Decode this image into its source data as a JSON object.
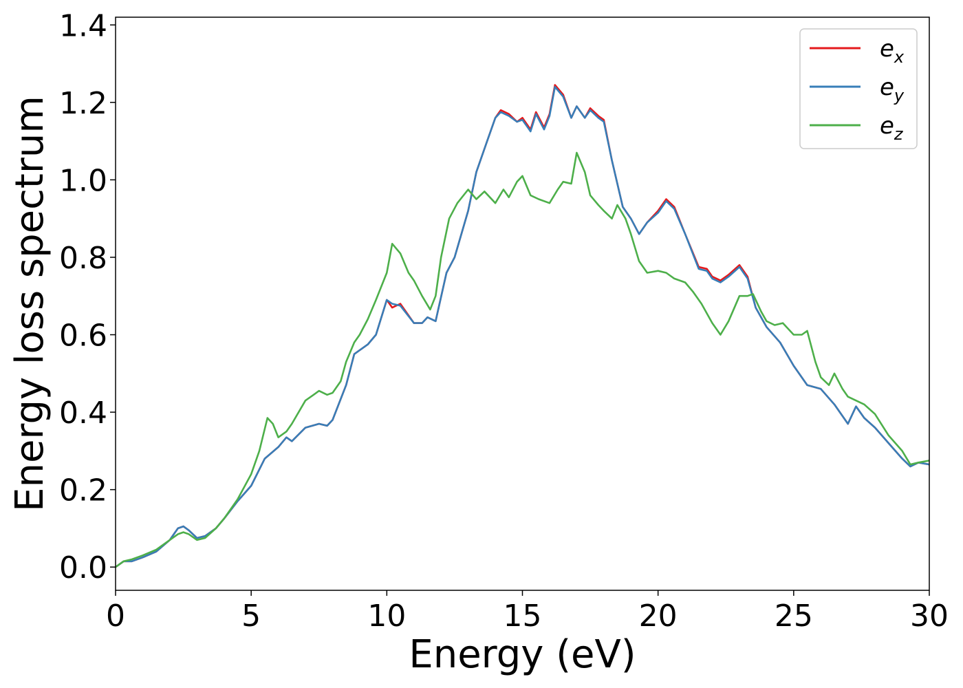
{
  "chart_data": {
    "type": "line",
    "title": "",
    "xlabel": "Energy (eV)",
    "ylabel": "Energy loss spectrum",
    "xlim": [
      0,
      30
    ],
    "ylim": [
      -0.06,
      1.42
    ],
    "x_ticks": [
      0,
      5,
      10,
      15,
      20,
      25,
      30
    ],
    "y_ticks": [
      0.0,
      0.2,
      0.4,
      0.6,
      0.8,
      1.0,
      1.2,
      1.4
    ],
    "x_tick_labels": [
      "0",
      "5",
      "10",
      "15",
      "20",
      "25",
      "30"
    ],
    "y_tick_labels": [
      "0.0",
      "0.2",
      "0.4",
      "0.6",
      "0.8",
      "1.0",
      "1.2",
      "1.4"
    ],
    "grid": false,
    "legend_position": "top-right",
    "series": [
      {
        "name": "e_x",
        "label_base": "e",
        "label_sub": "x",
        "color": "#e41a1c",
        "points": [
          [
            0,
            0.0
          ],
          [
            0.3,
            0.015
          ],
          [
            0.6,
            0.015
          ],
          [
            1.0,
            0.025
          ],
          [
            1.5,
            0.04
          ],
          [
            2.0,
            0.07
          ],
          [
            2.3,
            0.1
          ],
          [
            2.5,
            0.105
          ],
          [
            2.7,
            0.095
          ],
          [
            3.0,
            0.075
          ],
          [
            3.3,
            0.08
          ],
          [
            3.7,
            0.1
          ],
          [
            4.0,
            0.125
          ],
          [
            4.5,
            0.17
          ],
          [
            5.0,
            0.21
          ],
          [
            5.5,
            0.28
          ],
          [
            6.0,
            0.31
          ],
          [
            6.3,
            0.335
          ],
          [
            6.5,
            0.325
          ],
          [
            7.0,
            0.36
          ],
          [
            7.5,
            0.37
          ],
          [
            7.8,
            0.365
          ],
          [
            8.0,
            0.38
          ],
          [
            8.5,
            0.47
          ],
          [
            8.8,
            0.55
          ],
          [
            9.0,
            0.56
          ],
          [
            9.3,
            0.575
          ],
          [
            9.6,
            0.6
          ],
          [
            10.0,
            0.69
          ],
          [
            10.2,
            0.67
          ],
          [
            10.5,
            0.68
          ],
          [
            11.0,
            0.63
          ],
          [
            11.3,
            0.63
          ],
          [
            11.5,
            0.645
          ],
          [
            11.8,
            0.635
          ],
          [
            12.2,
            0.76
          ],
          [
            12.5,
            0.8
          ],
          [
            13.0,
            0.92
          ],
          [
            13.3,
            1.02
          ],
          [
            13.7,
            1.1
          ],
          [
            14.0,
            1.16
          ],
          [
            14.2,
            1.18
          ],
          [
            14.5,
            1.17
          ],
          [
            14.8,
            1.15
          ],
          [
            15.0,
            1.16
          ],
          [
            15.3,
            1.13
          ],
          [
            15.5,
            1.175
          ],
          [
            15.8,
            1.135
          ],
          [
            16.0,
            1.17
          ],
          [
            16.2,
            1.245
          ],
          [
            16.5,
            1.22
          ],
          [
            16.8,
            1.16
          ],
          [
            17.0,
            1.19
          ],
          [
            17.3,
            1.16
          ],
          [
            17.5,
            1.185
          ],
          [
            17.8,
            1.165
          ],
          [
            18.0,
            1.155
          ],
          [
            18.3,
            1.05
          ],
          [
            18.7,
            0.93
          ],
          [
            19.0,
            0.9
          ],
          [
            19.3,
            0.86
          ],
          [
            19.6,
            0.89
          ],
          [
            20.0,
            0.92
          ],
          [
            20.3,
            0.95
          ],
          [
            20.6,
            0.93
          ],
          [
            21.0,
            0.86
          ],
          [
            21.5,
            0.775
          ],
          [
            21.8,
            0.77
          ],
          [
            22.0,
            0.75
          ],
          [
            22.3,
            0.74
          ],
          [
            22.6,
            0.755
          ],
          [
            23.0,
            0.78
          ],
          [
            23.3,
            0.75
          ],
          [
            23.6,
            0.67
          ],
          [
            24.0,
            0.62
          ],
          [
            24.5,
            0.58
          ],
          [
            25.0,
            0.52
          ],
          [
            25.5,
            0.47
          ],
          [
            26.0,
            0.46
          ],
          [
            26.5,
            0.42
          ],
          [
            27.0,
            0.37
          ],
          [
            27.3,
            0.415
          ],
          [
            27.6,
            0.385
          ],
          [
            28.0,
            0.36
          ],
          [
            28.5,
            0.32
          ],
          [
            29.0,
            0.28
          ],
          [
            29.3,
            0.26
          ],
          [
            29.6,
            0.27
          ],
          [
            30.0,
            0.265
          ]
        ]
      },
      {
        "name": "e_y",
        "label_base": "e",
        "label_sub": "y",
        "color": "#377eb8",
        "points": [
          [
            0,
            0.0
          ],
          [
            0.3,
            0.015
          ],
          [
            0.6,
            0.015
          ],
          [
            1.0,
            0.025
          ],
          [
            1.5,
            0.04
          ],
          [
            2.0,
            0.07
          ],
          [
            2.3,
            0.1
          ],
          [
            2.5,
            0.105
          ],
          [
            2.7,
            0.095
          ],
          [
            3.0,
            0.075
          ],
          [
            3.3,
            0.08
          ],
          [
            3.7,
            0.1
          ],
          [
            4.0,
            0.125
          ],
          [
            4.5,
            0.17
          ],
          [
            5.0,
            0.21
          ],
          [
            5.5,
            0.28
          ],
          [
            6.0,
            0.31
          ],
          [
            6.3,
            0.335
          ],
          [
            6.5,
            0.325
          ],
          [
            7.0,
            0.36
          ],
          [
            7.5,
            0.37
          ],
          [
            7.8,
            0.365
          ],
          [
            8.0,
            0.38
          ],
          [
            8.5,
            0.47
          ],
          [
            8.8,
            0.55
          ],
          [
            9.0,
            0.56
          ],
          [
            9.3,
            0.575
          ],
          [
            9.6,
            0.6
          ],
          [
            10.0,
            0.69
          ],
          [
            10.2,
            0.68
          ],
          [
            10.5,
            0.675
          ],
          [
            11.0,
            0.63
          ],
          [
            11.3,
            0.63
          ],
          [
            11.5,
            0.645
          ],
          [
            11.8,
            0.635
          ],
          [
            12.2,
            0.76
          ],
          [
            12.5,
            0.8
          ],
          [
            13.0,
            0.92
          ],
          [
            13.3,
            1.02
          ],
          [
            13.7,
            1.1
          ],
          [
            14.0,
            1.16
          ],
          [
            14.2,
            1.175
          ],
          [
            14.5,
            1.165
          ],
          [
            14.8,
            1.15
          ],
          [
            15.0,
            1.155
          ],
          [
            15.3,
            1.125
          ],
          [
            15.5,
            1.17
          ],
          [
            15.8,
            1.13
          ],
          [
            16.0,
            1.165
          ],
          [
            16.2,
            1.24
          ],
          [
            16.5,
            1.215
          ],
          [
            16.8,
            1.16
          ],
          [
            17.0,
            1.19
          ],
          [
            17.3,
            1.16
          ],
          [
            17.5,
            1.18
          ],
          [
            17.8,
            1.16
          ],
          [
            18.0,
            1.15
          ],
          [
            18.3,
            1.05
          ],
          [
            18.7,
            0.93
          ],
          [
            19.0,
            0.9
          ],
          [
            19.3,
            0.86
          ],
          [
            19.6,
            0.89
          ],
          [
            20.0,
            0.915
          ],
          [
            20.3,
            0.945
          ],
          [
            20.6,
            0.925
          ],
          [
            21.0,
            0.86
          ],
          [
            21.5,
            0.77
          ],
          [
            21.8,
            0.765
          ],
          [
            22.0,
            0.745
          ],
          [
            22.3,
            0.735
          ],
          [
            22.6,
            0.75
          ],
          [
            23.0,
            0.775
          ],
          [
            23.3,
            0.745
          ],
          [
            23.6,
            0.67
          ],
          [
            24.0,
            0.62
          ],
          [
            24.5,
            0.58
          ],
          [
            25.0,
            0.52
          ],
          [
            25.5,
            0.47
          ],
          [
            26.0,
            0.46
          ],
          [
            26.5,
            0.42
          ],
          [
            27.0,
            0.37
          ],
          [
            27.3,
            0.415
          ],
          [
            27.6,
            0.385
          ],
          [
            28.0,
            0.36
          ],
          [
            28.5,
            0.32
          ],
          [
            29.0,
            0.28
          ],
          [
            29.3,
            0.26
          ],
          [
            29.6,
            0.27
          ],
          [
            30.0,
            0.265
          ]
        ]
      },
      {
        "name": "e_z",
        "label_base": "e",
        "label_sub": "z",
        "color": "#4daf4a",
        "points": [
          [
            0,
            0.0
          ],
          [
            0.3,
            0.015
          ],
          [
            0.6,
            0.02
          ],
          [
            1.0,
            0.03
          ],
          [
            1.5,
            0.045
          ],
          [
            2.0,
            0.07
          ],
          [
            2.3,
            0.085
          ],
          [
            2.5,
            0.09
          ],
          [
            2.7,
            0.085
          ],
          [
            3.0,
            0.07
          ],
          [
            3.3,
            0.075
          ],
          [
            3.7,
            0.1
          ],
          [
            4.0,
            0.125
          ],
          [
            4.5,
            0.175
          ],
          [
            5.0,
            0.24
          ],
          [
            5.3,
            0.3
          ],
          [
            5.6,
            0.385
          ],
          [
            5.8,
            0.37
          ],
          [
            6.0,
            0.335
          ],
          [
            6.3,
            0.35
          ],
          [
            6.5,
            0.37
          ],
          [
            7.0,
            0.43
          ],
          [
            7.3,
            0.445
          ],
          [
            7.5,
            0.455
          ],
          [
            7.8,
            0.445
          ],
          [
            8.0,
            0.45
          ],
          [
            8.3,
            0.48
          ],
          [
            8.5,
            0.53
          ],
          [
            8.8,
            0.58
          ],
          [
            9.0,
            0.6
          ],
          [
            9.3,
            0.64
          ],
          [
            9.6,
            0.69
          ],
          [
            10.0,
            0.76
          ],
          [
            10.2,
            0.835
          ],
          [
            10.5,
            0.81
          ],
          [
            10.8,
            0.76
          ],
          [
            11.0,
            0.74
          ],
          [
            11.3,
            0.7
          ],
          [
            11.6,
            0.665
          ],
          [
            11.8,
            0.7
          ],
          [
            12.0,
            0.8
          ],
          [
            12.3,
            0.9
          ],
          [
            12.6,
            0.94
          ],
          [
            13.0,
            0.975
          ],
          [
            13.3,
            0.95
          ],
          [
            13.6,
            0.97
          ],
          [
            14.0,
            0.94
          ],
          [
            14.3,
            0.975
          ],
          [
            14.5,
            0.955
          ],
          [
            14.8,
            0.995
          ],
          [
            15.0,
            1.01
          ],
          [
            15.3,
            0.96
          ],
          [
            15.6,
            0.95
          ],
          [
            16.0,
            0.94
          ],
          [
            16.3,
            0.975
          ],
          [
            16.5,
            0.995
          ],
          [
            16.8,
            0.99
          ],
          [
            17.0,
            1.07
          ],
          [
            17.3,
            1.02
          ],
          [
            17.5,
            0.96
          ],
          [
            17.8,
            0.935
          ],
          [
            18.0,
            0.92
          ],
          [
            18.3,
            0.9
          ],
          [
            18.5,
            0.935
          ],
          [
            18.8,
            0.9
          ],
          [
            19.0,
            0.86
          ],
          [
            19.3,
            0.79
          ],
          [
            19.6,
            0.76
          ],
          [
            20.0,
            0.765
          ],
          [
            20.3,
            0.76
          ],
          [
            20.6,
            0.745
          ],
          [
            21.0,
            0.735
          ],
          [
            21.3,
            0.71
          ],
          [
            21.6,
            0.68
          ],
          [
            22.0,
            0.63
          ],
          [
            22.3,
            0.6
          ],
          [
            22.6,
            0.635
          ],
          [
            23.0,
            0.7
          ],
          [
            23.3,
            0.7
          ],
          [
            23.5,
            0.705
          ],
          [
            23.8,
            0.66
          ],
          [
            24.0,
            0.635
          ],
          [
            24.3,
            0.625
          ],
          [
            24.6,
            0.63
          ],
          [
            25.0,
            0.6
          ],
          [
            25.3,
            0.6
          ],
          [
            25.5,
            0.61
          ],
          [
            25.8,
            0.53
          ],
          [
            26.0,
            0.49
          ],
          [
            26.3,
            0.47
          ],
          [
            26.5,
            0.5
          ],
          [
            26.8,
            0.46
          ],
          [
            27.0,
            0.44
          ],
          [
            27.3,
            0.43
          ],
          [
            27.6,
            0.42
          ],
          [
            28.0,
            0.395
          ],
          [
            28.5,
            0.34
          ],
          [
            29.0,
            0.3
          ],
          [
            29.3,
            0.265
          ],
          [
            29.6,
            0.27
          ],
          [
            30.0,
            0.275
          ]
        ]
      }
    ]
  }
}
